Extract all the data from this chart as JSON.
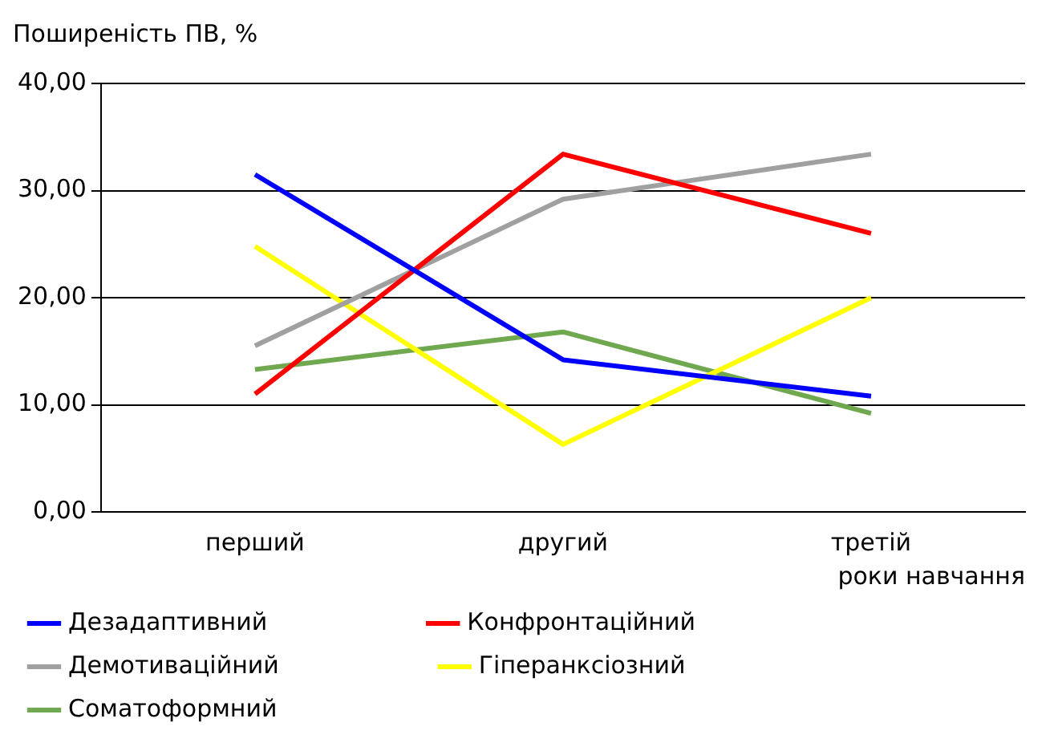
{
  "chart_data": {
    "type": "line",
    "ylabel": "Поширеність ПВ, %",
    "xlabel": "роки навчання",
    "categories": [
      "перший",
      "другий",
      "третій"
    ],
    "series": [
      {
        "name": "Дезадаптивний",
        "color": "#0000ff",
        "values": [
          31.5,
          14.2,
          10.8
        ]
      },
      {
        "name": "Конфронтаційний",
        "color": "#ff0000",
        "values": [
          11,
          33.4,
          26
        ]
      },
      {
        "name": "Демотиваційний",
        "color": "#a0a0a0",
        "values": [
          15.5,
          29.2,
          33.4
        ]
      },
      {
        "name": "Гіперанксіозний",
        "color": "#ffff00",
        "values": [
          24.8,
          6.3,
          20
        ]
      },
      {
        "name": "Соматоформний",
        "color": "#70a850",
        "values": [
          13.3,
          16.8,
          9.2
        ]
      }
    ],
    "ylim": [
      0,
      40
    ],
    "yticks": [
      {
        "value": 0,
        "label": "0,00"
      },
      {
        "value": 10,
        "label": "10,00"
      },
      {
        "value": 20,
        "label": "20,00"
      },
      {
        "value": 30,
        "label": "30,00"
      },
      {
        "value": 40,
        "label": "40,00"
      }
    ],
    "grid": "y",
    "legend": "bottom",
    "marker": "none",
    "line_style": "solid"
  }
}
